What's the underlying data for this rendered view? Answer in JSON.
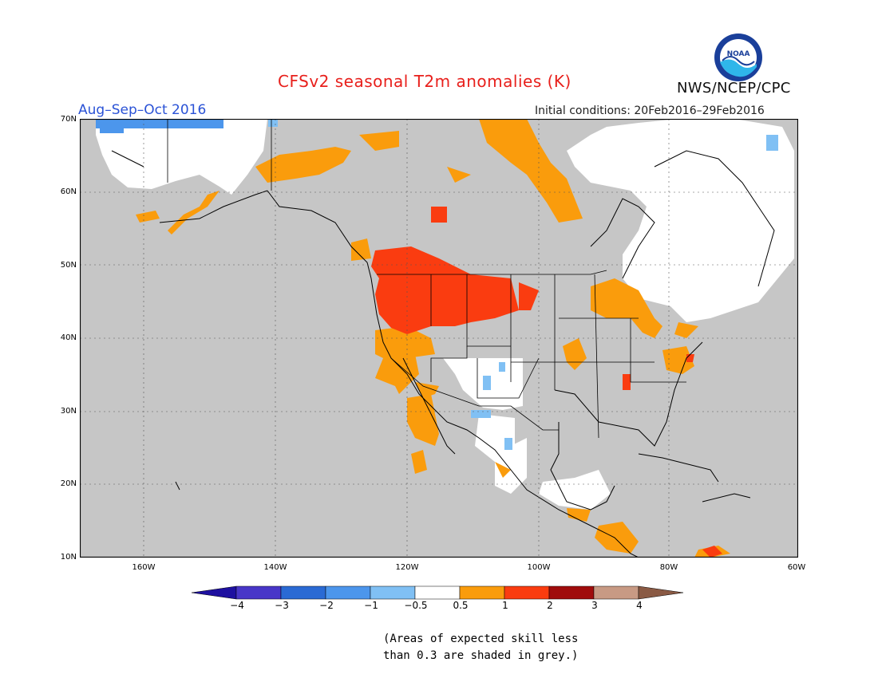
{
  "title": "CFSv2 seasonal T2m anomalies (K)",
  "period": "Aug–Sep–Oct 2016",
  "initial_conditions": "Initial conditions: 20Feb2016–29Feb2016",
  "organization": "NWS/NCEP/CPC",
  "logo_text": "NOAA",
  "lat_labels": [
    "70N",
    "60N",
    "50N",
    "40N",
    "30N",
    "20N",
    "10N"
  ],
  "lon_labels": [
    "160W",
    "140W",
    "120W",
    "100W",
    "80W",
    "60W"
  ],
  "colorbar": {
    "labels": [
      "−4",
      "−3",
      "−2",
      "−1",
      "−0.5",
      "0.5",
      "1",
      "2",
      "3",
      "4"
    ],
    "colors": [
      "#1e10a0",
      "#4836c8",
      "#2a6ad4",
      "#4c96ec",
      "#80c0f4",
      "#ffffff",
      "#fa9c0c",
      "#fa3c10",
      "#a00c0c",
      "#c89a84",
      "#8a5a44"
    ]
  },
  "note_line1": "(Areas of expected skill less",
  "note_line2": "than 0.3 are shaded in grey.)",
  "map_colors": {
    "grey": "#c6c6c6",
    "orange": "#fa9c0c",
    "red": "#fa3c10",
    "lightblue": "#80c0f4",
    "blue": "#4c96ec"
  }
}
